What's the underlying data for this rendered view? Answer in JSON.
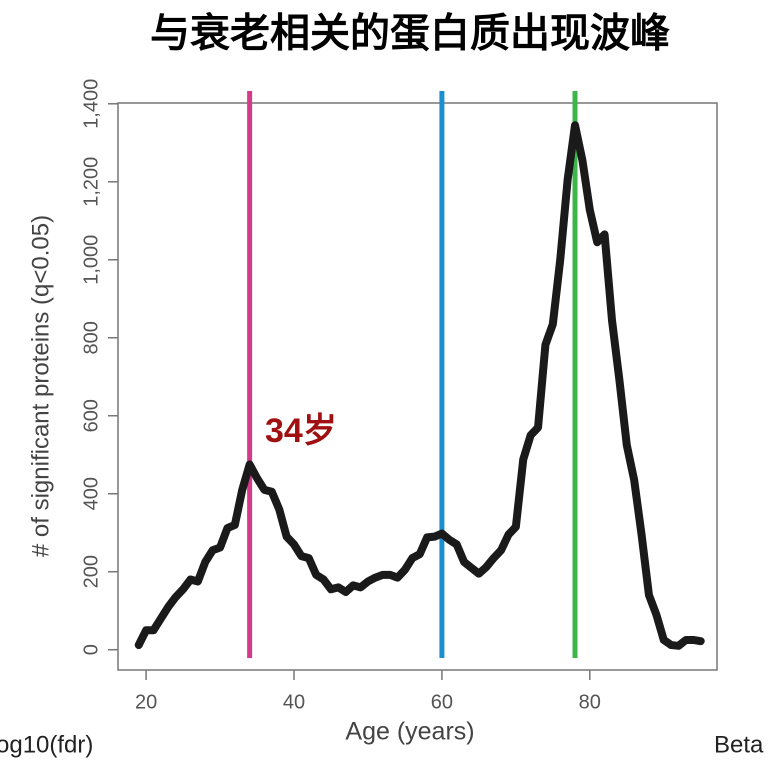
{
  "chart_data": {
    "type": "line",
    "title": "与衰老相关的蛋白质出现波峰",
    "x_label": "Age (years)",
    "y_label": "# of significant proteins (q<0.05)",
    "x": [
      19,
      20,
      21,
      22,
      23,
      24,
      25,
      26,
      27,
      28,
      29,
      30,
      31,
      32,
      33,
      34,
      35,
      36,
      37,
      38,
      39,
      40,
      41,
      42,
      43,
      44,
      45,
      46,
      47,
      48,
      49,
      50,
      51,
      52,
      53,
      54,
      55,
      56,
      57,
      58,
      59,
      60,
      61,
      62,
      63,
      64,
      65,
      66,
      67,
      68,
      69,
      70,
      71,
      72,
      73,
      74,
      75,
      76,
      77,
      78,
      79,
      80,
      81,
      82,
      83,
      84,
      85,
      86,
      87,
      88,
      89,
      90,
      91,
      92,
      93,
      94,
      95
    ],
    "series": [
      {
        "name": "significant proteins",
        "color": "#1a1a1a",
        "values": [
          12,
          50,
          50,
          80,
          110,
          135,
          155,
          180,
          175,
          225,
          255,
          262,
          312,
          320,
          410,
          475,
          440,
          410,
          405,
          360,
          290,
          270,
          240,
          235,
          192,
          180,
          155,
          160,
          148,
          165,
          160,
          175,
          185,
          192,
          192,
          185,
          205,
          235,
          245,
          288,
          290,
          298,
          282,
          270,
          225,
          210,
          195,
          212,
          235,
          255,
          295,
          315,
          488,
          550,
          570,
          782,
          835,
          1000,
          1205,
          1345,
          1255,
          1128,
          1045,
          1065,
          845,
          692,
          525,
          435,
          295,
          140,
          90,
          25,
          12,
          10,
          25,
          25,
          22
        ]
      }
    ],
    "xlim": [
      16.2,
      97.2
    ],
    "ylim": [
      -52,
      1402
    ],
    "xticks": [
      20,
      40,
      60,
      80
    ],
    "yticks": [
      0,
      200,
      400,
      600,
      800,
      {
        "value": 1000,
        "label": "1,000"
      },
      {
        "value": 1200,
        "label": "1,200"
      },
      {
        "value": 1400,
        "label": "1,400"
      }
    ],
    "vlines": [
      {
        "x": 34,
        "color": "#d63a8c"
      },
      {
        "x": 60,
        "color": "#1a8fd0"
      },
      {
        "x": 78,
        "color": "#3cb54a"
      }
    ],
    "annotations": [
      {
        "text": "34岁",
        "color": "#a01010"
      }
    ],
    "footer_texts": [
      "og10(fdr)",
      "Beta"
    ]
  }
}
